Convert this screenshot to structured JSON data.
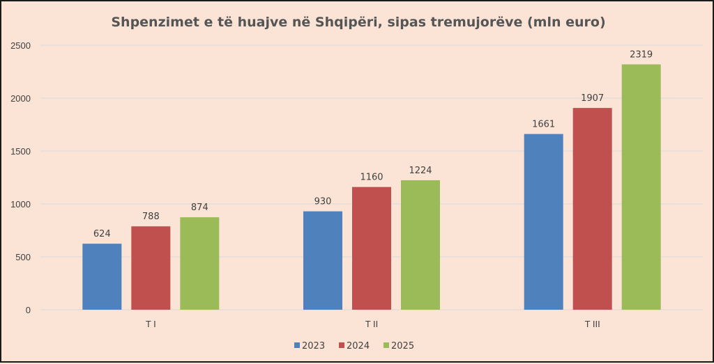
{
  "chart_data": {
    "type": "bar",
    "title": "Shpenzimet e të huajve në Shqipëri, sipas tremujorëve (mln euro)",
    "categories": [
      "T I",
      "T II",
      "T III"
    ],
    "series": [
      {
        "name": "2023",
        "values": [
          624,
          930,
          1661
        ],
        "color": "#4f81bd"
      },
      {
        "name": "2024",
        "values": [
          788,
          1160,
          1907
        ],
        "color": "#c0504d"
      },
      {
        "name": "2025",
        "values": [
          874,
          1224,
          2319
        ],
        "color": "#9bbb59"
      }
    ],
    "ylim": [
      0,
      2500
    ],
    "yticks": [
      0,
      500,
      1000,
      1500,
      2000,
      2500
    ],
    "grid": true,
    "legend": "bottom",
    "data_labels": true
  }
}
